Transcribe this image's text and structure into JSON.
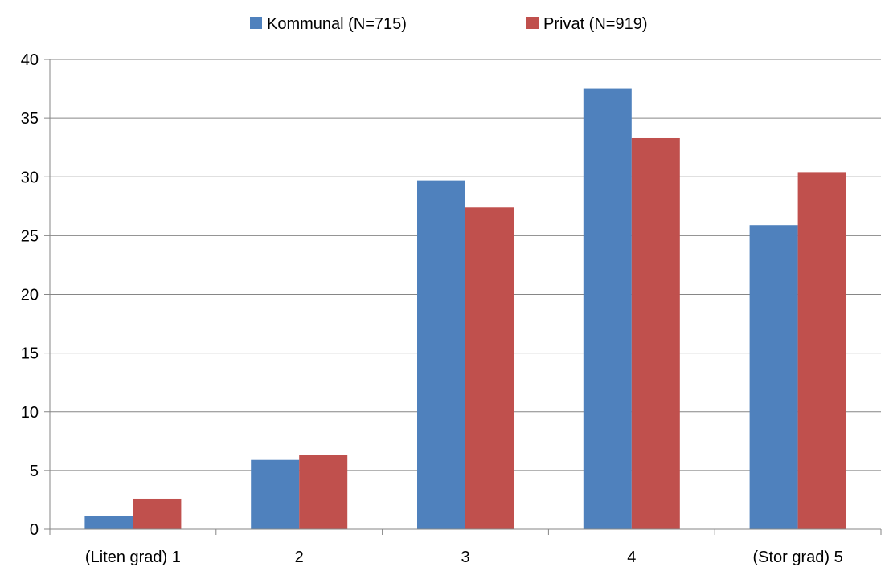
{
  "chart_data": {
    "type": "bar",
    "categories": [
      "(Liten grad) 1",
      "2",
      "3",
      "4",
      "(Stor grad) 5"
    ],
    "series": [
      {
        "name": "Kommunal (N=715)",
        "color": "#4F81BD",
        "values": [
          1.1,
          5.9,
          29.7,
          37.5,
          25.9
        ]
      },
      {
        "name": "Privat (N=919)",
        "color": "#C0504D",
        "values": [
          2.6,
          6.3,
          27.4,
          33.3,
          30.4
        ]
      }
    ],
    "title": "",
    "xlabel": "",
    "ylabel": "",
    "ylim": [
      0,
      40
    ],
    "yticks": [
      "0",
      "5",
      "10",
      "15",
      "20",
      "25",
      "30",
      "35",
      "40"
    ],
    "grid": true,
    "legend": "top-center"
  }
}
